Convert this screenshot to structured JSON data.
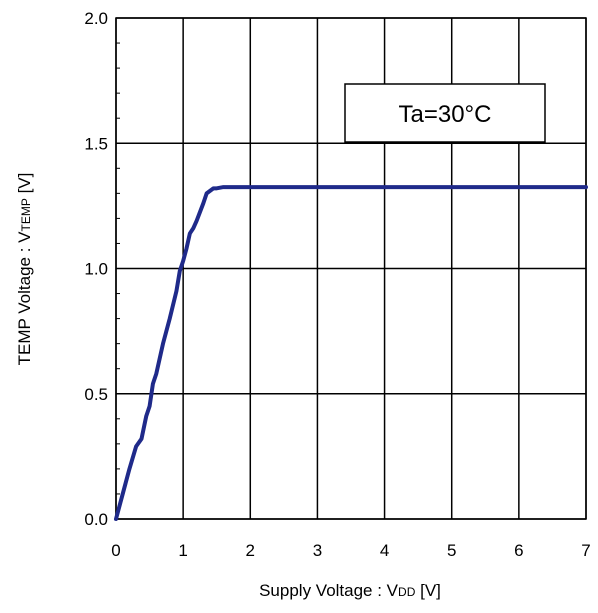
{
  "chart_data": {
    "type": "line",
    "title": "",
    "xlabel": "Supply Voltage : V",
    "xlabel_sub": "DD",
    "xlabel_unit": " [V]",
    "ylabel": "TEMP Voltage : V",
    "ylabel_sub": "TEMP",
    "ylabel_unit": " [V]",
    "xlim": [
      0,
      7
    ],
    "ylim": [
      0,
      2.0
    ],
    "xticks": [
      0,
      1,
      2,
      3,
      4,
      5,
      6,
      7
    ],
    "yticks": [
      0,
      0.5,
      1.0,
      1.5,
      2.0
    ],
    "xtick_labels": [
      "0",
      "1",
      "2",
      "3",
      "4",
      "5",
      "6",
      "7"
    ],
    "ytick_labels": [
      "0.0",
      "0.5",
      "1.0",
      "1.5",
      "2.0"
    ],
    "grid": true,
    "annotation": "Ta=30°C",
    "series": [
      {
        "color": "#1f2a8a",
        "x": [
          0,
          0.1,
          0.2,
          0.3,
          0.38,
          0.45,
          0.5,
          0.55,
          0.6,
          0.7,
          0.8,
          0.9,
          0.95,
          1.0,
          1.05,
          1.1,
          1.15,
          1.2,
          1.3,
          1.35,
          1.4,
          1.45,
          1.5,
          1.6,
          1.7,
          2.0,
          3.0,
          4.0,
          5.0,
          6.0,
          7.0
        ],
        "y": [
          0,
          0.1,
          0.2,
          0.29,
          0.32,
          0.41,
          0.45,
          0.54,
          0.58,
          0.7,
          0.8,
          0.91,
          0.99,
          1.03,
          1.08,
          1.14,
          1.16,
          1.19,
          1.26,
          1.3,
          1.31,
          1.32,
          1.32,
          1.325,
          1.325,
          1.325,
          1.325,
          1.325,
          1.325,
          1.325,
          1.325
        ]
      }
    ]
  }
}
